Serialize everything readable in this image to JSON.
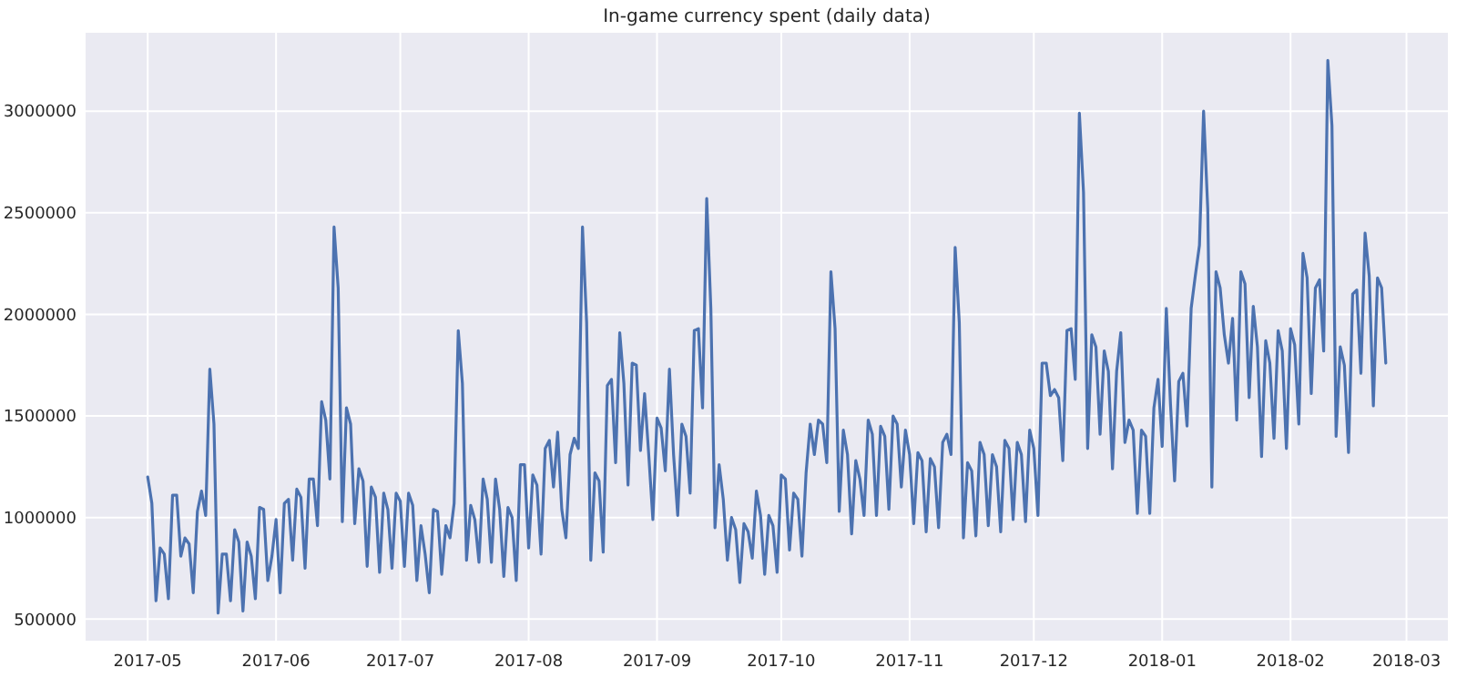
{
  "chart_data": {
    "type": "line",
    "title": "In-game currency spent (daily data)",
    "x": [
      "2017-05-01",
      "2017-05-02",
      "2017-05-03",
      "2017-05-04",
      "2017-05-05",
      "2017-05-06",
      "2017-05-07",
      "2017-05-08",
      "2017-05-09",
      "2017-05-10",
      "2017-05-11",
      "2017-05-12",
      "2017-05-13",
      "2017-05-14",
      "2017-05-15",
      "2017-05-16",
      "2017-05-17",
      "2017-05-18",
      "2017-05-19",
      "2017-05-20",
      "2017-05-21",
      "2017-05-22",
      "2017-05-23",
      "2017-05-24",
      "2017-05-25",
      "2017-05-26",
      "2017-05-27",
      "2017-05-28",
      "2017-05-29",
      "2017-05-30",
      "2017-05-31",
      "2017-06-01",
      "2017-06-02",
      "2017-06-03",
      "2017-06-04",
      "2017-06-05",
      "2017-06-06",
      "2017-06-07",
      "2017-06-08",
      "2017-06-09",
      "2017-06-10",
      "2017-06-11",
      "2017-06-12",
      "2017-06-13",
      "2017-06-14",
      "2017-06-15",
      "2017-06-16",
      "2017-06-17",
      "2017-06-18",
      "2017-06-19",
      "2017-06-20",
      "2017-06-21",
      "2017-06-22",
      "2017-06-23",
      "2017-06-24",
      "2017-06-25",
      "2017-06-26",
      "2017-06-27",
      "2017-06-28",
      "2017-06-29",
      "2017-06-30",
      "2017-07-01",
      "2017-07-02",
      "2017-07-03",
      "2017-07-04",
      "2017-07-05",
      "2017-07-06",
      "2017-07-07",
      "2017-07-08",
      "2017-07-09",
      "2017-07-10",
      "2017-07-11",
      "2017-07-12",
      "2017-07-13",
      "2017-07-14",
      "2017-07-15",
      "2017-07-16",
      "2017-07-17",
      "2017-07-18",
      "2017-07-19",
      "2017-07-20",
      "2017-07-21",
      "2017-07-22",
      "2017-07-23",
      "2017-07-24",
      "2017-07-25",
      "2017-07-26",
      "2017-07-27",
      "2017-07-28",
      "2017-07-29",
      "2017-07-30",
      "2017-07-31",
      "2017-08-01",
      "2017-08-02",
      "2017-08-03",
      "2017-08-04",
      "2017-08-05",
      "2017-08-06",
      "2017-08-07",
      "2017-08-08",
      "2017-08-09",
      "2017-08-10",
      "2017-08-11",
      "2017-08-12",
      "2017-08-13",
      "2017-08-14",
      "2017-08-15",
      "2017-08-16",
      "2017-08-17",
      "2017-08-18",
      "2017-08-19",
      "2017-08-20",
      "2017-08-21",
      "2017-08-22",
      "2017-08-23",
      "2017-08-24",
      "2017-08-25",
      "2017-08-26",
      "2017-08-27",
      "2017-08-28",
      "2017-08-29",
      "2017-08-30",
      "2017-08-31",
      "2017-09-01",
      "2017-09-02",
      "2017-09-03",
      "2017-09-04",
      "2017-09-05",
      "2017-09-06",
      "2017-09-07",
      "2017-09-08",
      "2017-09-09",
      "2017-09-10",
      "2017-09-11",
      "2017-09-12",
      "2017-09-13",
      "2017-09-14",
      "2017-09-15",
      "2017-09-16",
      "2017-09-17",
      "2017-09-18",
      "2017-09-19",
      "2017-09-20",
      "2017-09-21",
      "2017-09-22",
      "2017-09-23",
      "2017-09-24",
      "2017-09-25",
      "2017-09-26",
      "2017-09-27",
      "2017-09-28",
      "2017-09-29",
      "2017-09-30",
      "2017-10-01",
      "2017-10-02",
      "2017-10-03",
      "2017-10-04",
      "2017-10-05",
      "2017-10-06",
      "2017-10-07",
      "2017-10-08",
      "2017-10-09",
      "2017-10-10",
      "2017-10-11",
      "2017-10-12",
      "2017-10-13",
      "2017-10-14",
      "2017-10-15",
      "2017-10-16",
      "2017-10-17",
      "2017-10-18",
      "2017-10-19",
      "2017-10-20",
      "2017-10-21",
      "2017-10-22",
      "2017-10-23",
      "2017-10-24",
      "2017-10-25",
      "2017-10-26",
      "2017-10-27",
      "2017-10-28",
      "2017-10-29",
      "2017-10-30",
      "2017-10-31",
      "2017-11-01",
      "2017-11-02",
      "2017-11-03",
      "2017-11-04",
      "2017-11-05",
      "2017-11-06",
      "2017-11-07",
      "2017-11-08",
      "2017-11-09",
      "2017-11-10",
      "2017-11-11",
      "2017-11-12",
      "2017-11-13",
      "2017-11-14",
      "2017-11-15",
      "2017-11-16",
      "2017-11-17",
      "2017-11-18",
      "2017-11-19",
      "2017-11-20",
      "2017-11-21",
      "2017-11-22",
      "2017-11-23",
      "2017-11-24",
      "2017-11-25",
      "2017-11-26",
      "2017-11-27",
      "2017-11-28",
      "2017-11-29",
      "2017-11-30",
      "2017-12-01",
      "2017-12-02",
      "2017-12-03",
      "2017-12-04",
      "2017-12-05",
      "2017-12-06",
      "2017-12-07",
      "2017-12-08",
      "2017-12-09",
      "2017-12-10",
      "2017-12-11",
      "2017-12-12",
      "2017-12-13",
      "2017-12-14",
      "2017-12-15",
      "2017-12-16",
      "2017-12-17",
      "2017-12-18",
      "2017-12-19",
      "2017-12-20",
      "2017-12-21",
      "2017-12-22",
      "2017-12-23",
      "2017-12-24",
      "2017-12-25",
      "2017-12-26",
      "2017-12-27",
      "2017-12-28",
      "2017-12-29",
      "2017-12-30",
      "2017-12-31",
      "2018-01-01",
      "2018-01-02",
      "2018-01-03",
      "2018-01-04",
      "2018-01-05",
      "2018-01-06",
      "2018-01-07",
      "2018-01-08",
      "2018-01-09",
      "2018-01-10",
      "2018-01-11",
      "2018-01-12",
      "2018-01-13",
      "2018-01-14",
      "2018-01-15",
      "2018-01-16",
      "2018-01-17",
      "2018-01-18",
      "2018-01-19",
      "2018-01-20",
      "2018-01-21",
      "2018-01-22",
      "2018-01-23",
      "2018-01-24",
      "2018-01-25",
      "2018-01-26",
      "2018-01-27",
      "2018-01-28",
      "2018-01-29",
      "2018-01-30",
      "2018-01-31",
      "2018-02-01",
      "2018-02-02",
      "2018-02-03",
      "2018-02-04",
      "2018-02-05",
      "2018-02-06",
      "2018-02-07",
      "2018-02-08",
      "2018-02-09",
      "2018-02-10",
      "2018-02-11",
      "2018-02-12",
      "2018-02-13",
      "2018-02-14",
      "2018-02-15",
      "2018-02-16",
      "2018-02-17",
      "2018-02-18",
      "2018-02-19",
      "2018-02-20",
      "2018-02-21",
      "2018-02-22",
      "2018-02-23",
      "2018-02-24"
    ],
    "series": [
      {
        "color": "#4c72b0",
        "values": [
          1200000,
          1070000,
          590000,
          850000,
          820000,
          600000,
          1110000,
          1110000,
          810000,
          900000,
          870000,
          630000,
          1030000,
          1130000,
          1010000,
          1730000,
          1460000,
          530000,
          820000,
          820000,
          590000,
          940000,
          880000,
          540000,
          880000,
          810000,
          600000,
          1050000,
          1040000,
          690000,
          810000,
          990000,
          630000,
          1070000,
          1090000,
          790000,
          1140000,
          1100000,
          750000,
          1190000,
          1190000,
          960000,
          1570000,
          1480000,
          1190000,
          2430000,
          2130000,
          980000,
          1540000,
          1460000,
          970000,
          1240000,
          1180000,
          760000,
          1150000,
          1100000,
          730000,
          1120000,
          1040000,
          750000,
          1120000,
          1080000,
          760000,
          1120000,
          1060000,
          690000,
          960000,
          820000,
          630000,
          1040000,
          1030000,
          720000,
          960000,
          900000,
          1070000,
          1920000,
          1660000,
          790000,
          1060000,
          990000,
          780000,
          1190000,
          1090000,
          780000,
          1190000,
          1040000,
          710000,
          1050000,
          1000000,
          690000,
          1260000,
          1260000,
          850000,
          1210000,
          1160000,
          820000,
          1340000,
          1380000,
          1150000,
          1420000,
          1040000,
          900000,
          1310000,
          1390000,
          1340000,
          2430000,
          1960000,
          790000,
          1220000,
          1180000,
          830000,
          1650000,
          1680000,
          1270000,
          1910000,
          1660000,
          1160000,
          1760000,
          1750000,
          1330000,
          1610000,
          1310000,
          990000,
          1490000,
          1440000,
          1230000,
          1730000,
          1310000,
          1010000,
          1460000,
          1400000,
          1120000,
          1920000,
          1930000,
          1540000,
          2570000,
          2030000,
          950000,
          1260000,
          1090000,
          790000,
          1000000,
          940000,
          680000,
          970000,
          930000,
          800000,
          1130000,
          1010000,
          720000,
          1010000,
          960000,
          730000,
          1210000,
          1190000,
          840000,
          1120000,
          1090000,
          810000,
          1220000,
          1460000,
          1310000,
          1480000,
          1460000,
          1270000,
          2210000,
          1930000,
          1030000,
          1430000,
          1310000,
          920000,
          1280000,
          1190000,
          1010000,
          1480000,
          1410000,
          1010000,
          1450000,
          1400000,
          1040000,
          1500000,
          1460000,
          1150000,
          1430000,
          1310000,
          970000,
          1320000,
          1280000,
          930000,
          1290000,
          1250000,
          950000,
          1370000,
          1410000,
          1310000,
          2330000,
          1960000,
          900000,
          1270000,
          1230000,
          910000,
          1370000,
          1310000,
          960000,
          1310000,
          1250000,
          930000,
          1380000,
          1340000,
          990000,
          1370000,
          1310000,
          980000,
          1430000,
          1340000,
          1010000,
          1760000,
          1760000,
          1600000,
          1630000,
          1590000,
          1280000,
          1920000,
          1930000,
          1680000,
          2990000,
          2600000,
          1340000,
          1900000,
          1840000,
          1410000,
          1820000,
          1720000,
          1240000,
          1720000,
          1910000,
          1370000,
          1480000,
          1430000,
          1020000,
          1430000,
          1400000,
          1020000,
          1540000,
          1680000,
          1350000,
          2030000,
          1560000,
          1180000,
          1670000,
          1710000,
          1450000,
          2030000,
          2190000,
          2340000,
          3000000,
          2520000,
          1150000,
          2210000,
          2130000,
          1900000,
          1760000,
          1980000,
          1480000,
          2210000,
          2150000,
          1590000,
          2040000,
          1840000,
          1300000,
          1870000,
          1760000,
          1390000,
          1920000,
          1820000,
          1340000,
          1930000,
          1850000,
          1460000,
          2300000,
          2180000,
          1610000,
          2130000,
          2170000,
          1820000,
          3250000,
          2930000,
          1400000,
          1840000,
          1750000,
          1320000,
          2100000,
          2120000,
          1710000,
          2400000,
          2190000,
          1550000,
          2180000,
          2130000,
          1760000
        ]
      }
    ],
    "xlim": [
      "2017-04-16",
      "2018-03-11"
    ],
    "xticks": [
      "2017-05",
      "2017-06",
      "2017-07",
      "2017-08",
      "2017-09",
      "2017-10",
      "2017-11",
      "2017-12",
      "2018-01",
      "2018-02",
      "2018-03"
    ],
    "ylim": [
      394000,
      3386000
    ],
    "yticks": [
      500000,
      1000000,
      1500000,
      2000000,
      2500000,
      3000000
    ],
    "grid": true
  }
}
